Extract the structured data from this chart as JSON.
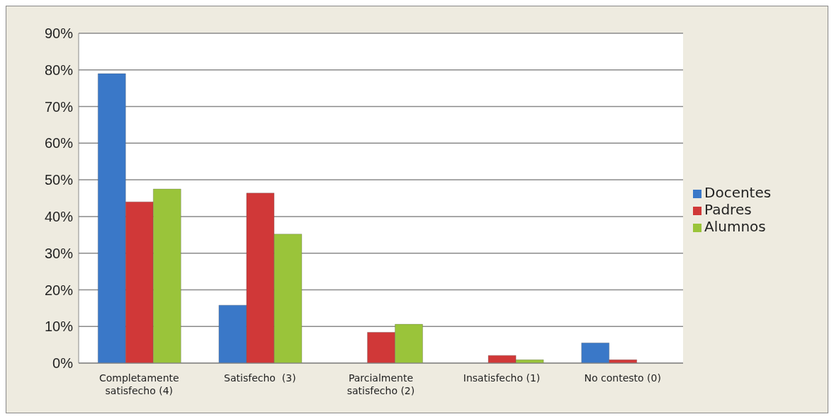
{
  "chart_data": {
    "type": "bar",
    "categories": [
      "Completamente satisfecho (4)",
      "Satisfecho  (3)",
      "Parcialmente satisfecho (2)",
      "Insatisfecho (1)",
      "No contesto (0)"
    ],
    "series": [
      {
        "name": "Docentes",
        "color": "#3a78c8",
        "values": [
          79,
          15.8,
          0,
          0,
          5.5
        ]
      },
      {
        "name": "Padres",
        "color": "#d03838",
        "values": [
          44,
          46.4,
          8.4,
          2.1,
          0.9
        ]
      },
      {
        "name": "Alumnos",
        "color": "#9ac43a",
        "values": [
          47.5,
          35.2,
          10.6,
          0.9,
          0
        ]
      }
    ],
    "ylim": [
      0,
      90
    ],
    "yticks": [
      {
        "value": 0,
        "label": "0%"
      },
      {
        "value": 10,
        "label": "10%"
      },
      {
        "value": 20,
        "label": "20%"
      },
      {
        "value": 30,
        "label": "30%"
      },
      {
        "value": 40,
        "label": "40%"
      },
      {
        "value": 50,
        "label": "50%"
      },
      {
        "value": 60,
        "label": "60%"
      },
      {
        "value": 70,
        "label": "70%"
      },
      {
        "value": 80,
        "label": "80%"
      },
      {
        "value": 90,
        "label": "90%"
      }
    ],
    "grid": "y",
    "legend": "right"
  }
}
